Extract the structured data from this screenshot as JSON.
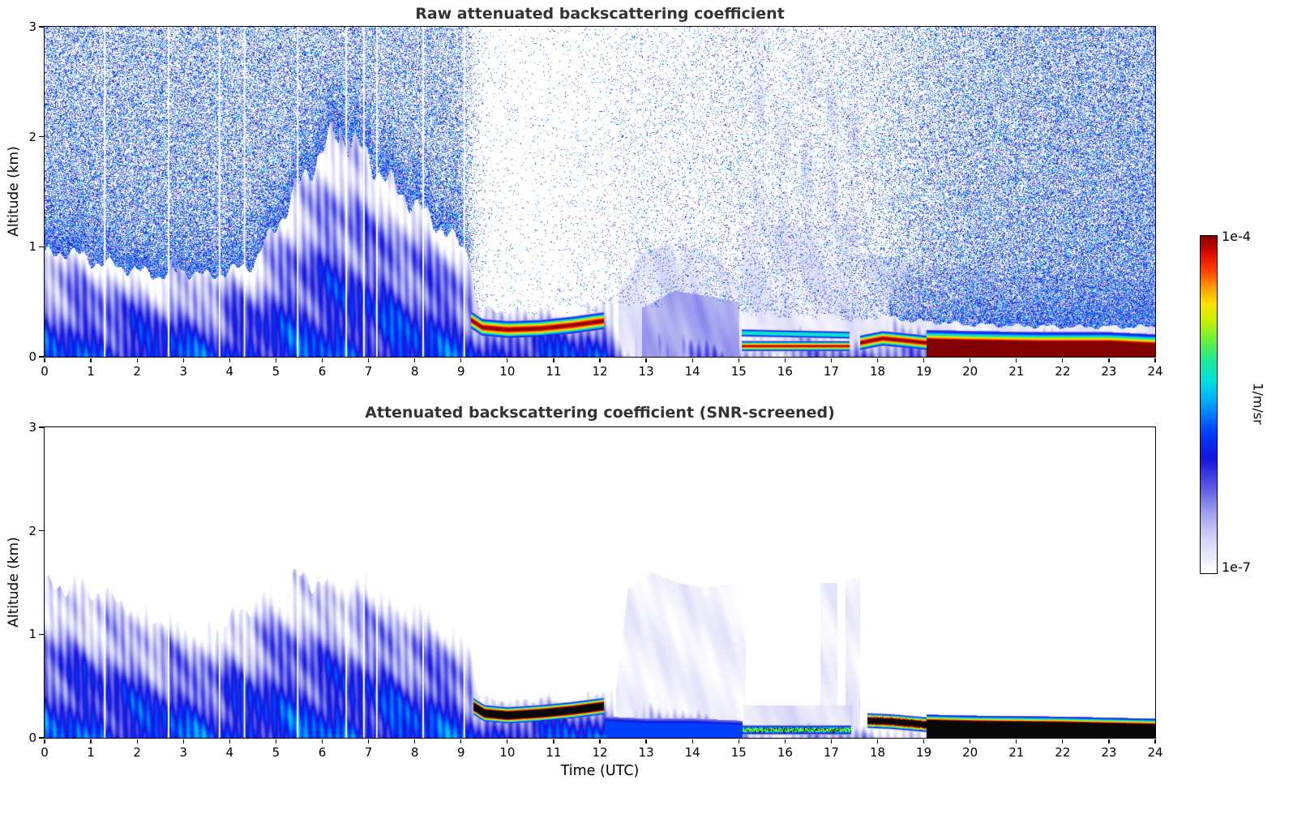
{
  "figure": {
    "background": "#ffffff",
    "axis_color": "#000000",
    "title_color": "#333333"
  },
  "chart_data": [
    {
      "type": "heatmap",
      "title": "Raw attenuated backscattering coefficient",
      "xlabel": "",
      "ylabel": "Altitude (km)",
      "xlim": [
        0,
        24
      ],
      "ylim": [
        0,
        3
      ],
      "xticks": [
        0,
        1,
        2,
        3,
        4,
        5,
        6,
        7,
        8,
        9,
        10,
        11,
        12,
        13,
        14,
        15,
        16,
        17,
        18,
        19,
        20,
        21,
        22,
        23,
        24
      ],
      "yticks": [
        0,
        1,
        2,
        3
      ],
      "value_scale": "log10(1/m/sr)",
      "value_range": [
        -7,
        -4
      ],
      "model": {
        "seed": 7,
        "bl_height": [
          [
            0,
            1.0
          ],
          [
            0.5,
            1.05
          ],
          [
            1,
            0.95
          ],
          [
            1.5,
            0.9
          ],
          [
            2,
            0.85
          ],
          [
            2.5,
            0.8
          ],
          [
            3,
            0.85
          ],
          [
            3.5,
            0.8
          ],
          [
            4,
            0.85
          ],
          [
            4.5,
            0.92
          ],
          [
            5,
            1.3
          ],
          [
            5.5,
            1.7
          ],
          [
            6,
            2.05
          ],
          [
            6.3,
            2.2
          ],
          [
            6.7,
            2.1
          ],
          [
            7,
            1.95
          ],
          [
            7.5,
            1.7
          ],
          [
            8,
            1.5
          ],
          [
            8.5,
            1.3
          ],
          [
            9,
            1.1
          ],
          [
            9.2,
            1.0
          ],
          [
            9.35,
            0.45
          ],
          [
            10,
            0.42
          ],
          [
            11,
            0.45
          ],
          [
            12,
            0.5
          ],
          [
            12.4,
            0.55
          ],
          [
            13,
            0.5
          ],
          [
            14,
            0.55
          ],
          [
            15,
            0.45
          ],
          [
            16,
            0.4
          ],
          [
            17,
            0.4
          ],
          [
            17.6,
            0.35
          ],
          [
            18,
            0.4
          ],
          [
            19,
            0.35
          ],
          [
            20,
            0.32
          ],
          [
            22,
            0.3
          ],
          [
            24,
            0.3
          ]
        ],
        "bl_value": [
          [
            0,
            -5.9
          ],
          [
            8,
            -5.85
          ],
          [
            9.15,
            -5.9
          ],
          [
            12.1,
            -5.9
          ],
          [
            12.5,
            -6.5
          ],
          [
            15.05,
            -6.5
          ],
          [
            17.6,
            -6.45
          ],
          [
            18,
            -6.15
          ],
          [
            19,
            -6.25
          ],
          [
            24,
            -6.25
          ]
        ],
        "noise_density": [
          [
            0,
            0.52
          ],
          [
            5,
            0.5
          ],
          [
            8,
            0.48
          ],
          [
            9,
            0.45
          ],
          [
            9.3,
            0.12
          ],
          [
            9.6,
            0.03
          ],
          [
            10.5,
            0.03
          ],
          [
            12,
            0.05
          ],
          [
            12.4,
            0.07
          ],
          [
            13,
            0.09
          ],
          [
            14,
            0.1
          ],
          [
            15,
            0.14
          ],
          [
            16,
            0.13
          ],
          [
            17,
            0.14
          ],
          [
            17.6,
            0.18
          ],
          [
            18,
            0.22
          ],
          [
            18.5,
            0.28
          ],
          [
            19,
            0.35
          ],
          [
            19.5,
            0.42
          ],
          [
            20,
            0.46
          ],
          [
            21,
            0.5
          ],
          [
            22,
            0.55
          ],
          [
            23,
            0.58
          ],
          [
            24,
            0.6
          ]
        ],
        "haze": [
          {
            "t0": 12.4,
            "t1": 15.05,
            "ztop_pts": [
              [
                12.4,
                0.6
              ],
              [
                12.9,
                0.95
              ],
              [
                13.6,
                1.05
              ],
              [
                14.4,
                0.95
              ],
              [
                15.05,
                0.65
              ]
            ],
            "v": -6.82
          },
          {
            "t0": 12.9,
            "t1": 15,
            "ztop_pts": [
              [
                12.9,
                0.45
              ],
              [
                13.6,
                0.6
              ],
              [
                14.4,
                0.55
              ],
              [
                15,
                0.5
              ]
            ],
            "v": -6.5
          },
          {
            "t0": 15.05,
            "t1": 17.58,
            "ztop": 1.2,
            "v": -6.85
          },
          {
            "t0": 15.3,
            "t1": 15.55,
            "ztop": 3,
            "v": -6.9
          },
          {
            "t0": 15.85,
            "t1": 16.1,
            "ztop": 2.4,
            "v": -6.9
          },
          {
            "t0": 16.35,
            "t1": 16.6,
            "ztop": 3,
            "v": -6.9
          },
          {
            "t0": 16.9,
            "t1": 17.15,
            "ztop": 2.8,
            "v": -6.9
          },
          {
            "t0": 17.32,
            "t1": 17.58,
            "ztop": 2.3,
            "v": -6.9
          },
          {
            "t0": 17.58,
            "t1": 24,
            "ztop_pts": [
              [
                17.58,
                0.95
              ],
              [
                19,
                0.85
              ],
              [
                21,
                0.75
              ],
              [
                24,
                0.7
              ]
            ],
            "v": -6.85
          }
        ],
        "layers": [
          {
            "kind": "band",
            "t0": 9.2,
            "t1": 12.08,
            "zc": [
              [
                9.2,
                0.34
              ],
              [
                9.45,
                0.27
              ],
              [
                10,
                0.25
              ],
              [
                10.7,
                0.26
              ],
              [
                11.4,
                0.29
              ],
              [
                12.08,
                0.33
              ]
            ],
            "half": 0.09,
            "v": -3.98,
            "fall": 3.1,
            "p": 1.6
          },
          {
            "kind": "band",
            "t0": 15.05,
            "t1": 17.38,
            "zc": [
              [
                15.05,
                0.1
              ],
              [
                17.38,
                0.1
              ]
            ],
            "half": 0.055,
            "v": -4.05,
            "fall": 3.2,
            "p": 1.5
          },
          {
            "kind": "band",
            "t0": 15.05,
            "t1": 17.38,
            "zc": [
              [
                15.05,
                0.22
              ],
              [
                17.38,
                0.2
              ]
            ],
            "half": 0.035,
            "v": -5.15,
            "fall": 1.6,
            "p": 2
          },
          {
            "kind": "band",
            "t0": 17.62,
            "t1": 19.05,
            "zc": [
              [
                17.62,
                0.13
              ],
              [
                18.1,
                0.17
              ],
              [
                18.6,
                0.15
              ],
              [
                19.05,
                0.13
              ]
            ],
            "half": 0.075,
            "v": -3.98,
            "fall": 3,
            "p": 1.6
          },
          {
            "kind": "surface",
            "t0": 19.05,
            "t1": 24,
            "ztop": [
              [
                19.05,
                0.16
              ],
              [
                20,
                0.15
              ],
              [
                21.5,
                0.14
              ],
              [
                23,
                0.14
              ],
              [
                24,
                0.12
              ]
            ],
            "v": -3.95,
            "fringe": 0.09
          }
        ],
        "gaps": [
          1.3,
          2.68,
          3.78,
          4.32,
          5.47,
          6.52,
          6.9,
          7.18,
          8.18,
          9.07
        ]
      }
    },
    {
      "type": "heatmap",
      "title": "Attenuated backscattering coefficient (SNR-screened)",
      "xlabel": "Time (UTC)",
      "ylabel": "Altitude (km)",
      "xlim": [
        0,
        24
      ],
      "ylim": [
        0,
        3
      ],
      "xticks": [
        0,
        1,
        2,
        3,
        4,
        5,
        6,
        7,
        8,
        9,
        10,
        11,
        12,
        13,
        14,
        15,
        16,
        17,
        18,
        19,
        20,
        21,
        22,
        23,
        24
      ],
      "yticks": [
        0,
        1,
        2,
        3
      ],
      "value_scale": "log10(1/m/sr)",
      "value_range": [
        -7,
        -4
      ],
      "model": {
        "seed": 11,
        "saturate": -3.95,
        "bl_height": [
          [
            0,
            1.45
          ],
          [
            0.7,
            1.5
          ],
          [
            1.5,
            1.35
          ],
          [
            2,
            1.25
          ],
          [
            2.5,
            1.15
          ],
          [
            3,
            1.1
          ],
          [
            3.5,
            1.05
          ],
          [
            4,
            1.15
          ],
          [
            4.5,
            1.3
          ],
          [
            5,
            1.45
          ],
          [
            5.5,
            1.55
          ],
          [
            6,
            1.5
          ],
          [
            6.5,
            1.45
          ],
          [
            7,
            1.5
          ],
          [
            7.3,
            1.45
          ],
          [
            7.6,
            1.35
          ],
          [
            8,
            1.25
          ],
          [
            8.5,
            1.15
          ],
          [
            9,
            1.05
          ],
          [
            9.2,
            0.95
          ],
          [
            9.35,
            0.4
          ],
          [
            10,
            0.35
          ],
          [
            11,
            0.4
          ],
          [
            12,
            0.45
          ],
          [
            12.4,
            0.4
          ],
          [
            13,
            0.35
          ],
          [
            14,
            0.35
          ],
          [
            15,
            0.3
          ],
          [
            16,
            0.25
          ],
          [
            17,
            0.25
          ],
          [
            17.6,
            0.25
          ],
          [
            18,
            0.3
          ],
          [
            19,
            0.25
          ],
          [
            24,
            0.2
          ]
        ],
        "bl_value": [
          [
            0,
            -5.85
          ],
          [
            8.5,
            -5.8
          ],
          [
            9.15,
            -5.9
          ],
          [
            12.1,
            -5.85
          ],
          [
            12.5,
            -6.25
          ],
          [
            15,
            -6.2
          ],
          [
            15.3,
            -6.6
          ],
          [
            17.6,
            -6.6
          ],
          [
            17.8,
            -6.45
          ],
          [
            19.05,
            -6.75
          ],
          [
            24,
            -6.85
          ]
        ],
        "haze": [
          {
            "t0": 12.35,
            "t1": 15.15,
            "ztop_pts": [
              [
                12.35,
                0.5
              ],
              [
                12.6,
                1.45
              ],
              [
                13.1,
                1.6
              ],
              [
                13.7,
                1.5
              ],
              [
                14.3,
                1.45
              ],
              [
                14.9,
                1.5
              ],
              [
                15.15,
                0.9
              ]
            ],
            "v": -6.9
          },
          {
            "t0": 15.1,
            "t1": 17.45,
            "ztop": 0.32,
            "v": -6.8
          },
          {
            "t0": 16.75,
            "t1": 17.12,
            "ztop": 1.5,
            "v": -6.88
          },
          {
            "t0": 17.3,
            "t1": 17.62,
            "ztop": 1.55,
            "v": -6.88
          }
        ],
        "layers": [
          {
            "kind": "band",
            "t0": 9.25,
            "t1": 12.08,
            "zc": [
              [
                9.25,
                0.31
              ],
              [
                9.5,
                0.24
              ],
              [
                10,
                0.22
              ],
              [
                10.7,
                0.24
              ],
              [
                11.4,
                0.27
              ],
              [
                12.08,
                0.31
              ]
            ],
            "half": 0.095,
            "v": -3.3,
            "fall": 4.4,
            "p": 1.9
          },
          {
            "kind": "surface",
            "t0": 12.1,
            "t1": 15.08,
            "ztop": [
              [
                12.1,
                0.16
              ],
              [
                13,
                0.14
              ],
              [
                14,
                0.14
              ],
              [
                15.08,
                0.12
              ]
            ],
            "v": -5.75,
            "fringe": 0.05
          },
          {
            "kind": "band",
            "t0": 15.08,
            "t1": 17.42,
            "zc": [
              [
                15.08,
                0.08
              ],
              [
                17.42,
                0.08
              ]
            ],
            "half": 0.055,
            "v": -4.85,
            "fall": 2.4,
            "p": 1.6,
            "fleck": 0.22
          },
          {
            "kind": "band",
            "t0": 17.78,
            "t1": 19.05,
            "zc": [
              [
                17.78,
                0.17
              ],
              [
                18.3,
                0.16
              ],
              [
                19.05,
                0.13
              ]
            ],
            "half": 0.085,
            "v": -3.4,
            "fall": 4.2,
            "p": 1.8,
            "mottle": 0.5
          },
          {
            "kind": "surface",
            "t0": 19.05,
            "t1": 24,
            "ztop": [
              [
                19.05,
                0.16
              ],
              [
                20,
                0.15
              ],
              [
                22,
                0.14
              ],
              [
                24,
                0.12
              ]
            ],
            "v": -3.3,
            "fringe": 0.07
          }
        ],
        "gaps": [
          1.3,
          2.68,
          3.78,
          4.32,
          5.47,
          6.52,
          6.9,
          7.18,
          8.18,
          9.07
        ]
      }
    }
  ],
  "colorbar": {
    "max_label": "1e-4",
    "min_label": "1e-7",
    "units_label": "1/m/sr",
    "scale": "logarithmic",
    "stops": [
      [
        0,
        "#ffffff"
      ],
      [
        0.05,
        "#eaeafb"
      ],
      [
        0.11,
        "#cfcff6"
      ],
      [
        0.18,
        "#9e9eee"
      ],
      [
        0.26,
        "#5555e6"
      ],
      [
        0.34,
        "#1414dc"
      ],
      [
        0.42,
        "#0041ff"
      ],
      [
        0.5,
        "#00a0ff"
      ],
      [
        0.57,
        "#00e1e1"
      ],
      [
        0.63,
        "#1ee896"
      ],
      [
        0.69,
        "#69f03c"
      ],
      [
        0.75,
        "#c8f000"
      ],
      [
        0.8,
        "#ffe100"
      ],
      [
        0.85,
        "#ff9600"
      ],
      [
        0.9,
        "#ff3c00"
      ],
      [
        0.95,
        "#dc0a00"
      ],
      [
        1,
        "#820000"
      ]
    ]
  }
}
